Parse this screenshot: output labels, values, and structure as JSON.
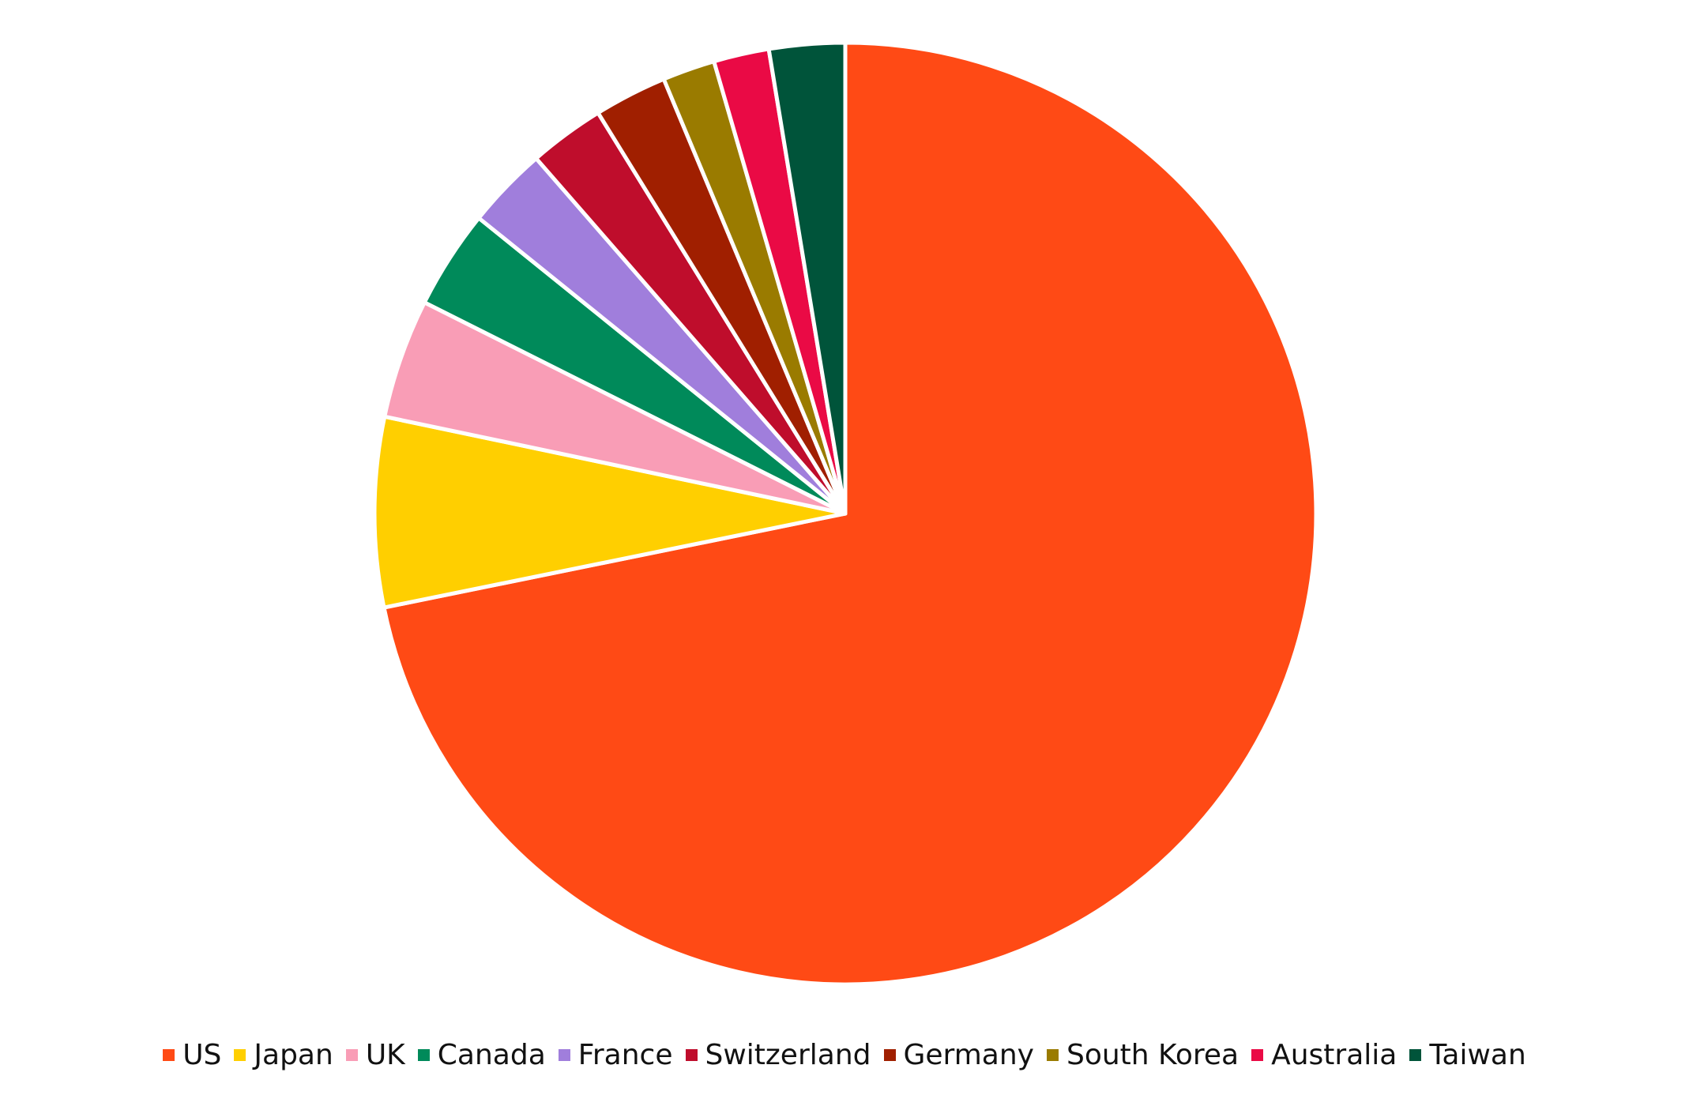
{
  "chart_data": {
    "type": "pie",
    "categories": [
      "US",
      "Japan",
      "UK",
      "Canada",
      "France",
      "Switzerland",
      "Germany",
      "South Korea",
      "Australia",
      "Taiwan"
    ],
    "values": [
      71.8,
      6.5,
      4.1,
      3.4,
      2.8,
      2.6,
      2.5,
      1.8,
      1.9,
      2.6
    ],
    "colors": [
      "#ff4a15",
      "#ffcf00",
      "#f99db6",
      "#008a5a",
      "#a07edc",
      "#bf0d2c",
      "#a01f00",
      "#9a7b00",
      "#ea0a45",
      "#00543a"
    ],
    "legend": "bottom"
  }
}
